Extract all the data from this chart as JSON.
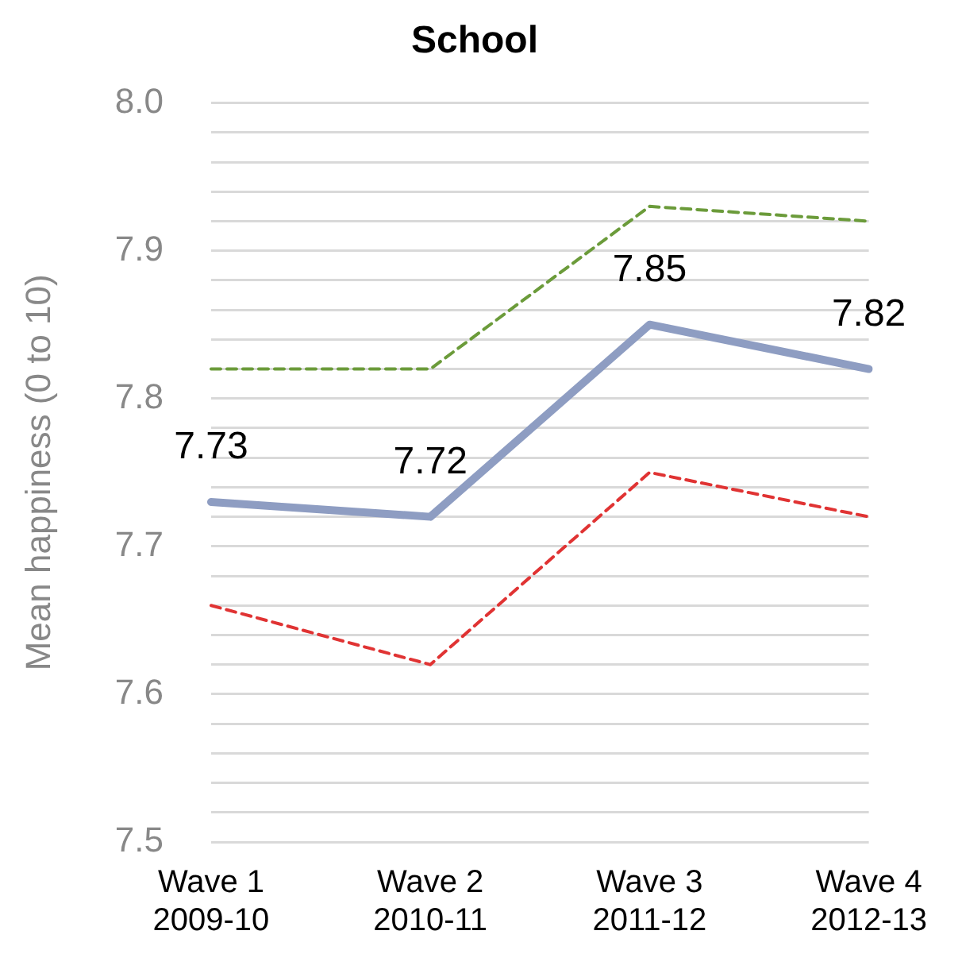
{
  "chart_data": {
    "type": "line",
    "title": "School",
    "ylabel": "Mean happiness (0 to 10)",
    "categories": [
      "Wave 1\n2009-10",
      "Wave 2\n2010-11",
      "Wave 3\n2011-12",
      "Wave 4\n2012-13"
    ],
    "series": [
      {
        "color": "#6b9b3a",
        "values": [
          7.82,
          7.82,
          7.93,
          7.92
        ],
        "line_style": "dashed"
      },
      {
        "color": "#8e9dc2",
        "values": [
          7.73,
          7.72,
          7.85,
          7.82
        ],
        "line_style": "solid",
        "value_labels": [
          "7.73",
          "7.72",
          "7.85",
          "7.82"
        ]
      },
      {
        "color": "#e03333",
        "values": [
          7.66,
          7.62,
          7.75,
          7.72
        ],
        "line_style": "dashed"
      }
    ],
    "ylim": [
      7.5,
      8.0
    ],
    "yticks": [
      7.5,
      {
        "value": 7.52,
        "label": null
      },
      {
        "value": 7.54,
        "label": null
      },
      {
        "value": 7.56,
        "label": null
      },
      {
        "value": 7.58,
        "label": null
      },
      7.6,
      {
        "value": 7.62,
        "label": null
      },
      {
        "value": 7.64,
        "label": null
      },
      {
        "value": 7.66,
        "label": null
      },
      {
        "value": 7.68,
        "label": null
      },
      7.7,
      {
        "value": 7.72,
        "label": null
      },
      {
        "value": 7.74,
        "label": null
      },
      {
        "value": 7.76,
        "label": null
      },
      {
        "value": 7.78,
        "label": null
      },
      7.8,
      {
        "value": 7.82,
        "label": null
      },
      {
        "value": 7.84,
        "label": null
      },
      {
        "value": 7.86,
        "label": null
      },
      {
        "value": 7.88,
        "label": null
      },
      7.9,
      {
        "value": 7.92,
        "label": null
      },
      {
        "value": 7.94,
        "label": null
      },
      {
        "value": 7.96,
        "label": null
      },
      {
        "value": 7.98,
        "label": null
      },
      {
        "value": 8.0,
        "label": "8.0"
      }
    ],
    "grid": "y",
    "legend": false,
    "marker": "none"
  }
}
